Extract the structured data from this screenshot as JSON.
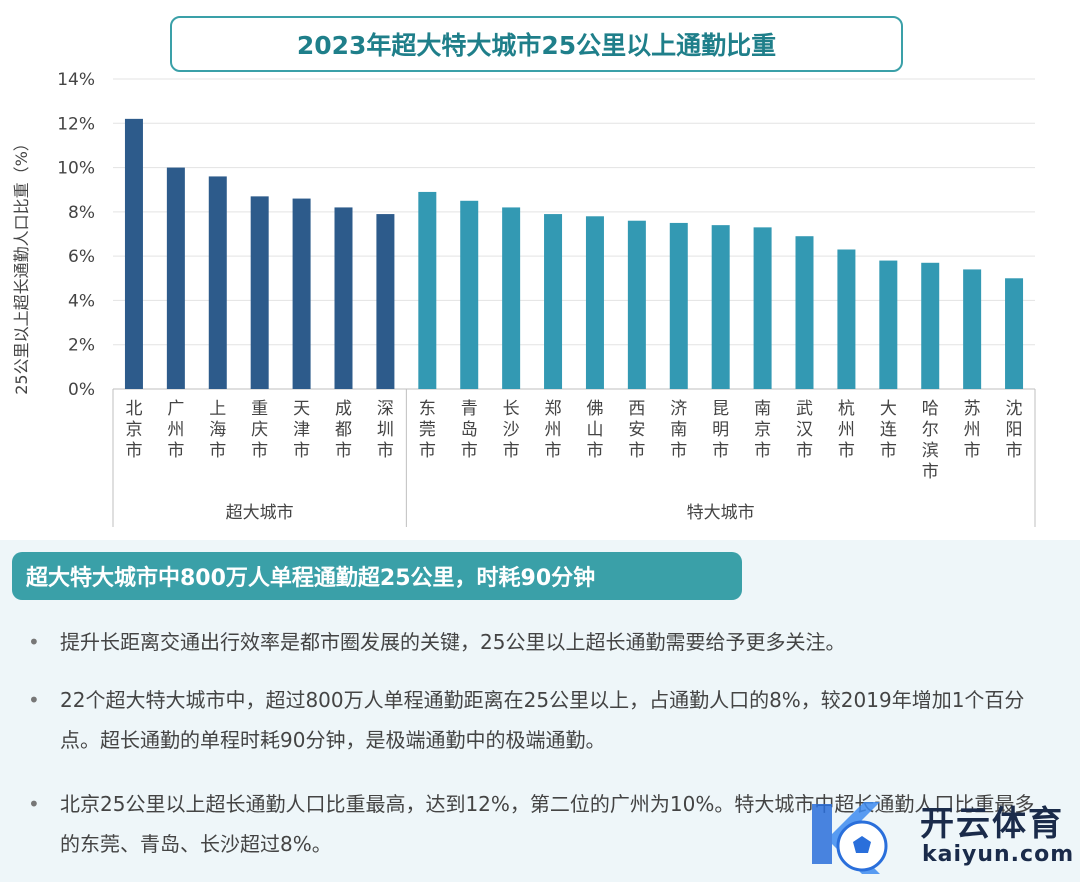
{
  "chart_data": {
    "type": "bar",
    "title": "2023年超大特大城市25公里以上通勤比重",
    "ylabel": "25公里以上超长通勤人口比重（%）",
    "ylim": [
      0,
      14
    ],
    "yticks": [
      "0%",
      "2%",
      "4%",
      "6%",
      "8%",
      "10%",
      "12%",
      "14%"
    ],
    "groups": [
      {
        "name": "超大城市",
        "color": "#2d5b8b",
        "categories": [
          "北京市",
          "广州市",
          "上海市",
          "重庆市",
          "天津市",
          "成都市",
          "深圳市"
        ],
        "values": [
          12.2,
          10.0,
          9.6,
          8.7,
          8.6,
          8.2,
          7.9
        ]
      },
      {
        "name": "特大城市",
        "color": "#3399b3",
        "categories": [
          "东莞市",
          "青岛市",
          "长沙市",
          "郑州市",
          "佛山市",
          "西安市",
          "济南市",
          "昆明市",
          "南京市",
          "武汉市",
          "杭州市",
          "大连市",
          "哈尔滨市",
          "苏州市",
          "沈阳市"
        ],
        "values": [
          8.9,
          8.5,
          8.2,
          7.9,
          7.8,
          7.6,
          7.5,
          7.4,
          7.3,
          6.9,
          6.3,
          5.8,
          5.7,
          5.4,
          5.0
        ]
      }
    ]
  },
  "panel": {
    "header": "超大特大城市中800万人单程通勤超25公里，时耗90分钟",
    "bullet_symbol": "•",
    "bullets": [
      "提升长距离交通出行效率是都市圈发展的关键，25公里以上超长通勤需要给予更多关注。",
      "22个超大特大城市中，超过800万人单程通勤距离在25公里以上，占通勤人口的8%，较2019年增加1个百分点。超长通勤的单程时耗90分钟，是极端通勤中的极端通勤。",
      "北京25公里以上超长通勤人口比重最高，达到12%，第二位的广州为10%。特大城市中超长通勤人口比重最多的东莞、青岛、长沙超过8%。"
    ]
  },
  "watermark": {
    "name": "开云体育",
    "url": "kaiyun.com"
  }
}
